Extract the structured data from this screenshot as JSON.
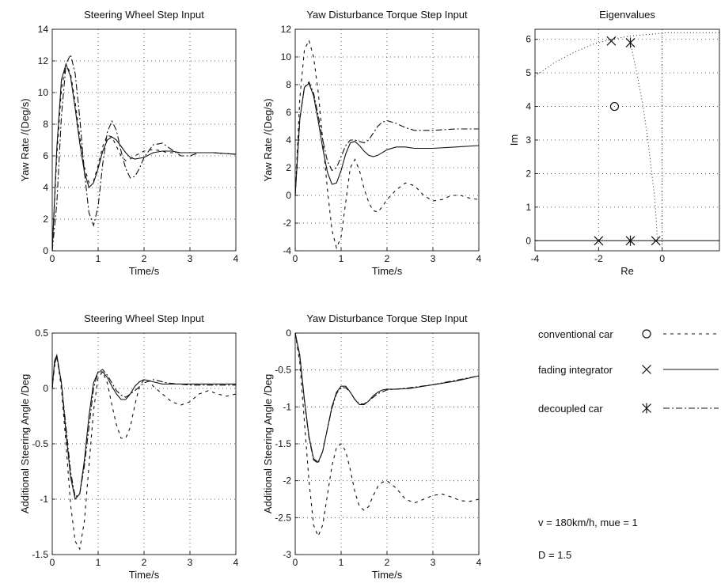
{
  "legend": {
    "items": [
      {
        "label": "conventional car",
        "marker": "o",
        "dash": "4 5"
      },
      {
        "label": "fading integrator",
        "marker": "x",
        "dash": ""
      },
      {
        "label": "decoupled car",
        "marker": "*",
        "dash": "8 3 2 3"
      }
    ]
  },
  "params": {
    "line1": "v = 180km/h,    mue = 1",
    "line2": "D = 1.5"
  },
  "chart_data": [
    {
      "id": "p1",
      "type": "line",
      "title": "Steering Wheel Step Input",
      "xlabel": "Time/s",
      "ylabel": "Yaw Rate /(Deg/s)",
      "xlim": [
        0,
        4
      ],
      "ylim": [
        0,
        14
      ],
      "xticks": [
        0,
        1,
        2,
        3,
        4
      ],
      "yticks": [
        0,
        2,
        4,
        6,
        8,
        10,
        12,
        14
      ],
      "grid": true,
      "series": [
        {
          "dash": "4 5",
          "x": [
            0,
            0.1,
            0.2,
            0.3,
            0.4,
            0.5,
            0.6,
            0.7,
            0.8,
            0.9,
            1.0,
            1.1,
            1.2,
            1.3,
            1.4,
            1.5,
            1.6,
            1.7,
            1.8,
            2.0,
            2.2,
            2.4,
            2.5,
            2.6,
            2.8,
            3.0,
            3.2,
            3.5,
            4.0
          ],
          "y": [
            0,
            6.0,
            10.2,
            11.8,
            11.2,
            9.4,
            7.2,
            5.3,
            4.3,
            4.4,
            5.4,
            6.6,
            7.3,
            7.2,
            6.6,
            6.0,
            5.7,
            5.8,
            6.0,
            6.3,
            6.4,
            6.3,
            6.2,
            6.2,
            6.2,
            6.2,
            6.2,
            6.2,
            6.1
          ]
        },
        {
          "dash": "",
          "x": [
            0,
            0.1,
            0.2,
            0.3,
            0.4,
            0.5,
            0.6,
            0.7,
            0.8,
            0.9,
            1.0,
            1.1,
            1.2,
            1.3,
            1.4,
            1.5,
            1.6,
            1.7,
            1.8,
            2.0,
            2.2,
            2.4,
            2.6,
            2.8,
            3.0,
            3.2,
            3.5,
            4.0
          ],
          "y": [
            0,
            6.5,
            10.8,
            11.8,
            11.0,
            9.0,
            6.8,
            5.0,
            4.0,
            4.3,
            5.2,
            6.3,
            7.0,
            7.2,
            7.0,
            6.6,
            6.2,
            5.9,
            5.8,
            5.9,
            6.2,
            6.3,
            6.3,
            6.2,
            6.2,
            6.2,
            6.2,
            6.1
          ]
        },
        {
          "dash": "8 3 2 3",
          "x": [
            0,
            0.1,
            0.2,
            0.3,
            0.4,
            0.5,
            0.6,
            0.7,
            0.8,
            0.9,
            1.0,
            1.1,
            1.2,
            1.3,
            1.4,
            1.5,
            1.6,
            1.7,
            1.8,
            1.9,
            2.0,
            2.2,
            2.4,
            2.6,
            2.8,
            3.0,
            3.2,
            3.5,
            4.0
          ],
          "y": [
            0,
            3.0,
            8.5,
            11.8,
            12.4,
            11.2,
            8.4,
            5.0,
            2.4,
            1.6,
            2.8,
            5.5,
            7.5,
            8.2,
            7.6,
            6.3,
            5.2,
            4.6,
            4.7,
            5.2,
            5.9,
            6.7,
            6.8,
            6.4,
            6.0,
            6.0,
            6.2,
            6.2,
            6.1
          ]
        }
      ]
    },
    {
      "id": "p2",
      "type": "line",
      "title": "Yaw Disturbance Torque Step Input",
      "xlabel": "Time/s",
      "ylabel": "Yaw Rate /(Deg/s)",
      "xlim": [
        0,
        4
      ],
      "ylim": [
        -4,
        12
      ],
      "xticks": [
        0,
        1,
        2,
        3,
        4
      ],
      "yticks": [
        -4,
        -2,
        0,
        2,
        4,
        6,
        8,
        10,
        12
      ],
      "grid": true,
      "series": [
        {
          "dash": "4 5",
          "x": [
            0,
            0.1,
            0.2,
            0.3,
            0.4,
            0.5,
            0.6,
            0.7,
            0.8,
            0.9,
            1.0,
            1.1,
            1.2,
            1.3,
            1.4,
            1.5,
            1.6,
            1.7,
            1.8,
            1.9,
            2.0,
            2.2,
            2.4,
            2.6,
            2.8,
            3.0,
            3.2,
            3.4,
            3.6,
            3.8,
            4.0
          ],
          "y": [
            0,
            7.0,
            10.5,
            11.2,
            10.0,
            7.5,
            4.0,
            0.5,
            -2.5,
            -3.8,
            -3.0,
            -0.5,
            2.0,
            2.6,
            1.8,
            0.5,
            -0.5,
            -1.1,
            -1.2,
            -0.8,
            -0.3,
            0.4,
            0.9,
            0.7,
            0.0,
            -0.4,
            -0.3,
            0.0,
            0.0,
            -0.2,
            -0.3
          ]
        },
        {
          "dash": "",
          "x": [
            0,
            0.1,
            0.2,
            0.3,
            0.4,
            0.5,
            0.6,
            0.7,
            0.8,
            0.9,
            1.0,
            1.1,
            1.2,
            1.3,
            1.4,
            1.5,
            1.6,
            1.7,
            1.8,
            1.9,
            2.0,
            2.2,
            2.4,
            2.6,
            2.8,
            3.0,
            3.5,
            4.0
          ],
          "y": [
            0,
            5.5,
            7.8,
            8.1,
            7.2,
            5.4,
            3.4,
            1.7,
            0.8,
            0.9,
            1.8,
            3.0,
            3.8,
            3.9,
            3.6,
            3.2,
            2.9,
            2.8,
            2.9,
            3.1,
            3.3,
            3.5,
            3.5,
            3.4,
            3.4,
            3.4,
            3.5,
            3.6
          ]
        },
        {
          "dash": "8 3 2 3",
          "x": [
            0,
            0.1,
            0.2,
            0.3,
            0.4,
            0.5,
            0.6,
            0.7,
            0.8,
            0.9,
            1.0,
            1.1,
            1.2,
            1.3,
            1.4,
            1.5,
            1.6,
            1.7,
            1.8,
            1.9,
            2.0,
            2.2,
            2.4,
            2.6,
            2.8,
            3.0,
            3.5,
            4.0
          ],
          "y": [
            0,
            5.5,
            7.8,
            8.2,
            7.4,
            5.8,
            4.0,
            2.5,
            1.8,
            2.0,
            2.8,
            3.6,
            4.0,
            4.0,
            3.9,
            3.8,
            4.0,
            4.5,
            5.0,
            5.3,
            5.4,
            5.2,
            4.9,
            4.7,
            4.7,
            4.7,
            4.8,
            4.8
          ]
        }
      ]
    },
    {
      "id": "p3",
      "type": "scatter",
      "title": "Eigenvalues",
      "xlabel": "Re",
      "ylabel": "Im",
      "xlim": [
        -4,
        1.8
      ],
      "ylim": [
        -0.3,
        6.3
      ],
      "xticks": [
        -4,
        -2,
        0
      ],
      "yticks": [
        0,
        1,
        2,
        3,
        4,
        5,
        6
      ],
      "grid": true,
      "points": [
        {
          "marker": "o",
          "x": -1.5,
          "y": 4.0
        },
        {
          "marker": "x",
          "x": -1.6,
          "y": 5.95
        },
        {
          "marker": "*",
          "x": -1.0,
          "y": 5.9
        },
        {
          "marker": "x",
          "x": -2.0,
          "y": 0.0
        },
        {
          "marker": "*",
          "x": -1.0,
          "y": 0.0
        },
        {
          "marker": "x",
          "x": -0.2,
          "y": 0.0
        }
      ],
      "loci": [
        {
          "x": [
            -4.0,
            -3.4,
            -2.8,
            -2.2,
            -1.6,
            -1.0,
            -0.4,
            0.2,
            0.8,
            1.4,
            1.8
          ],
          "y": [
            4.9,
            5.3,
            5.6,
            5.85,
            6.0,
            6.1,
            6.15,
            6.2,
            6.2,
            6.2,
            6.2
          ]
        },
        {
          "x": [
            -1.0,
            -0.8,
            -0.6,
            -0.45,
            -0.35,
            -0.25,
            -0.2,
            -0.15
          ],
          "y": [
            5.9,
            5.0,
            4.0,
            3.0,
            2.2,
            1.4,
            0.8,
            0.0
          ]
        }
      ]
    },
    {
      "id": "p4",
      "type": "line",
      "title": "Steering Wheel Step Input",
      "xlabel": "Time/s",
      "ylabel": "Additional Steering Angle /Deg",
      "xlim": [
        0,
        4
      ],
      "ylim": [
        -1.5,
        0.5
      ],
      "xticks": [
        0,
        1,
        2,
        3,
        4
      ],
      "yticks": [
        -1.5,
        -1,
        -0.5,
        0,
        0.5
      ],
      "grid": true,
      "series": [
        {
          "dash": "4 5",
          "x": [
            0,
            0.05,
            0.1,
            0.2,
            0.3,
            0.4,
            0.5,
            0.6,
            0.7,
            0.8,
            0.9,
            1.0,
            1.1,
            1.2,
            1.3,
            1.4,
            1.5,
            1.6,
            1.7,
            1.8,
            1.9,
            2.0,
            2.1,
            2.2,
            2.4,
            2.6,
            2.8,
            3.0,
            3.2,
            3.4,
            3.6,
            3.8,
            4.0
          ],
          "y": [
            0,
            0.2,
            0.3,
            0.0,
            -0.5,
            -1.05,
            -1.38,
            -1.45,
            -1.2,
            -0.7,
            -0.2,
            0.1,
            0.15,
            0.05,
            -0.15,
            -0.33,
            -0.45,
            -0.45,
            -0.35,
            -0.15,
            0.02,
            0.08,
            0.07,
            0.02,
            -0.05,
            -0.12,
            -0.15,
            -0.12,
            -0.05,
            -0.02,
            -0.05,
            -0.07,
            -0.05
          ]
        },
        {
          "dash": "",
          "x": [
            0,
            0.05,
            0.1,
            0.2,
            0.3,
            0.4,
            0.5,
            0.6,
            0.7,
            0.8,
            0.9,
            1.0,
            1.1,
            1.2,
            1.3,
            1.4,
            1.5,
            1.6,
            1.7,
            1.8,
            1.9,
            2.0,
            2.2,
            2.4,
            2.6,
            2.8,
            3.0,
            3.5,
            4.0
          ],
          "y": [
            0,
            0.25,
            0.3,
            0.05,
            -0.4,
            -0.8,
            -1.0,
            -0.95,
            -0.65,
            -0.25,
            0.05,
            0.15,
            0.15,
            0.1,
            0.02,
            -0.05,
            -0.1,
            -0.1,
            -0.05,
            0.02,
            0.06,
            0.08,
            0.06,
            0.04,
            0.04,
            0.04,
            0.04,
            0.04,
            0.04
          ]
        },
        {
          "dash": "8 3 2 3",
          "x": [
            0,
            0.05,
            0.1,
            0.2,
            0.3,
            0.4,
            0.5,
            0.6,
            0.7,
            0.8,
            0.9,
            1.0,
            1.1,
            1.2,
            1.3,
            1.4,
            1.5,
            1.6,
            1.8,
            2.0,
            2.2,
            2.5,
            3.0,
            3.5,
            4.0
          ],
          "y": [
            0,
            0.22,
            0.28,
            0.05,
            -0.35,
            -0.75,
            -0.98,
            -0.95,
            -0.7,
            -0.35,
            0.0,
            0.15,
            0.17,
            0.12,
            0.05,
            -0.02,
            -0.06,
            -0.08,
            -0.02,
            0.05,
            0.08,
            0.05,
            0.03,
            0.03,
            0.03
          ]
        }
      ]
    },
    {
      "id": "p5",
      "type": "line",
      "title": "Yaw Disturbance Torque Step Input",
      "xlabel": "Time/s",
      "ylabel": "Additional Steering Angle /Deg",
      "xlim": [
        0,
        4
      ],
      "ylim": [
        -3,
        0
      ],
      "xticks": [
        0,
        1,
        2,
        3,
        4
      ],
      "yticks": [
        -3,
        -2.5,
        -2,
        -1.5,
        -1,
        -0.5,
        0
      ],
      "grid": true,
      "series": [
        {
          "dash": "4 5",
          "x": [
            0,
            0.1,
            0.2,
            0.3,
            0.4,
            0.5,
            0.6,
            0.7,
            0.8,
            0.9,
            1.0,
            1.1,
            1.2,
            1.3,
            1.4,
            1.5,
            1.6,
            1.7,
            1.8,
            1.9,
            2.0,
            2.1,
            2.2,
            2.4,
            2.6,
            2.8,
            3.0,
            3.2,
            3.4,
            3.6,
            3.8,
            4.0
          ],
          "y": [
            0,
            -0.4,
            -1.2,
            -2.0,
            -2.6,
            -2.75,
            -2.6,
            -2.2,
            -1.8,
            -1.55,
            -1.5,
            -1.6,
            -1.85,
            -2.15,
            -2.35,
            -2.4,
            -2.35,
            -2.2,
            -2.08,
            -2.02,
            -2.0,
            -2.05,
            -2.1,
            -2.25,
            -2.3,
            -2.25,
            -2.2,
            -2.18,
            -2.22,
            -2.27,
            -2.28,
            -2.25
          ]
        },
        {
          "dash": "",
          "x": [
            0,
            0.1,
            0.2,
            0.3,
            0.4,
            0.5,
            0.6,
            0.7,
            0.8,
            0.9,
            1.0,
            1.1,
            1.2,
            1.3,
            1.4,
            1.5,
            1.6,
            1.7,
            1.8,
            1.9,
            2.0,
            2.2,
            2.5,
            3.0,
            3.5,
            4.0
          ],
          "y": [
            0,
            -0.3,
            -0.9,
            -1.4,
            -1.7,
            -1.75,
            -1.6,
            -1.3,
            -1.0,
            -0.8,
            -0.72,
            -0.72,
            -0.8,
            -0.9,
            -0.97,
            -0.97,
            -0.92,
            -0.85,
            -0.8,
            -0.77,
            -0.76,
            -0.76,
            -0.75,
            -0.7,
            -0.65,
            -0.58
          ]
        },
        {
          "dash": "8 3 2 3",
          "x": [
            0,
            0.1,
            0.2,
            0.3,
            0.4,
            0.5,
            0.6,
            0.7,
            0.8,
            0.9,
            1.0,
            1.1,
            1.2,
            1.3,
            1.4,
            1.5,
            1.6,
            1.8,
            2.0,
            2.2,
            2.5,
            3.0,
            3.5,
            4.0
          ],
          "y": [
            0,
            -0.32,
            -0.92,
            -1.42,
            -1.72,
            -1.76,
            -1.6,
            -1.3,
            -1.02,
            -0.82,
            -0.74,
            -0.74,
            -0.8,
            -0.9,
            -0.96,
            -0.96,
            -0.92,
            -0.82,
            -0.77,
            -0.76,
            -0.74,
            -0.7,
            -0.64,
            -0.58
          ]
        }
      ]
    }
  ]
}
